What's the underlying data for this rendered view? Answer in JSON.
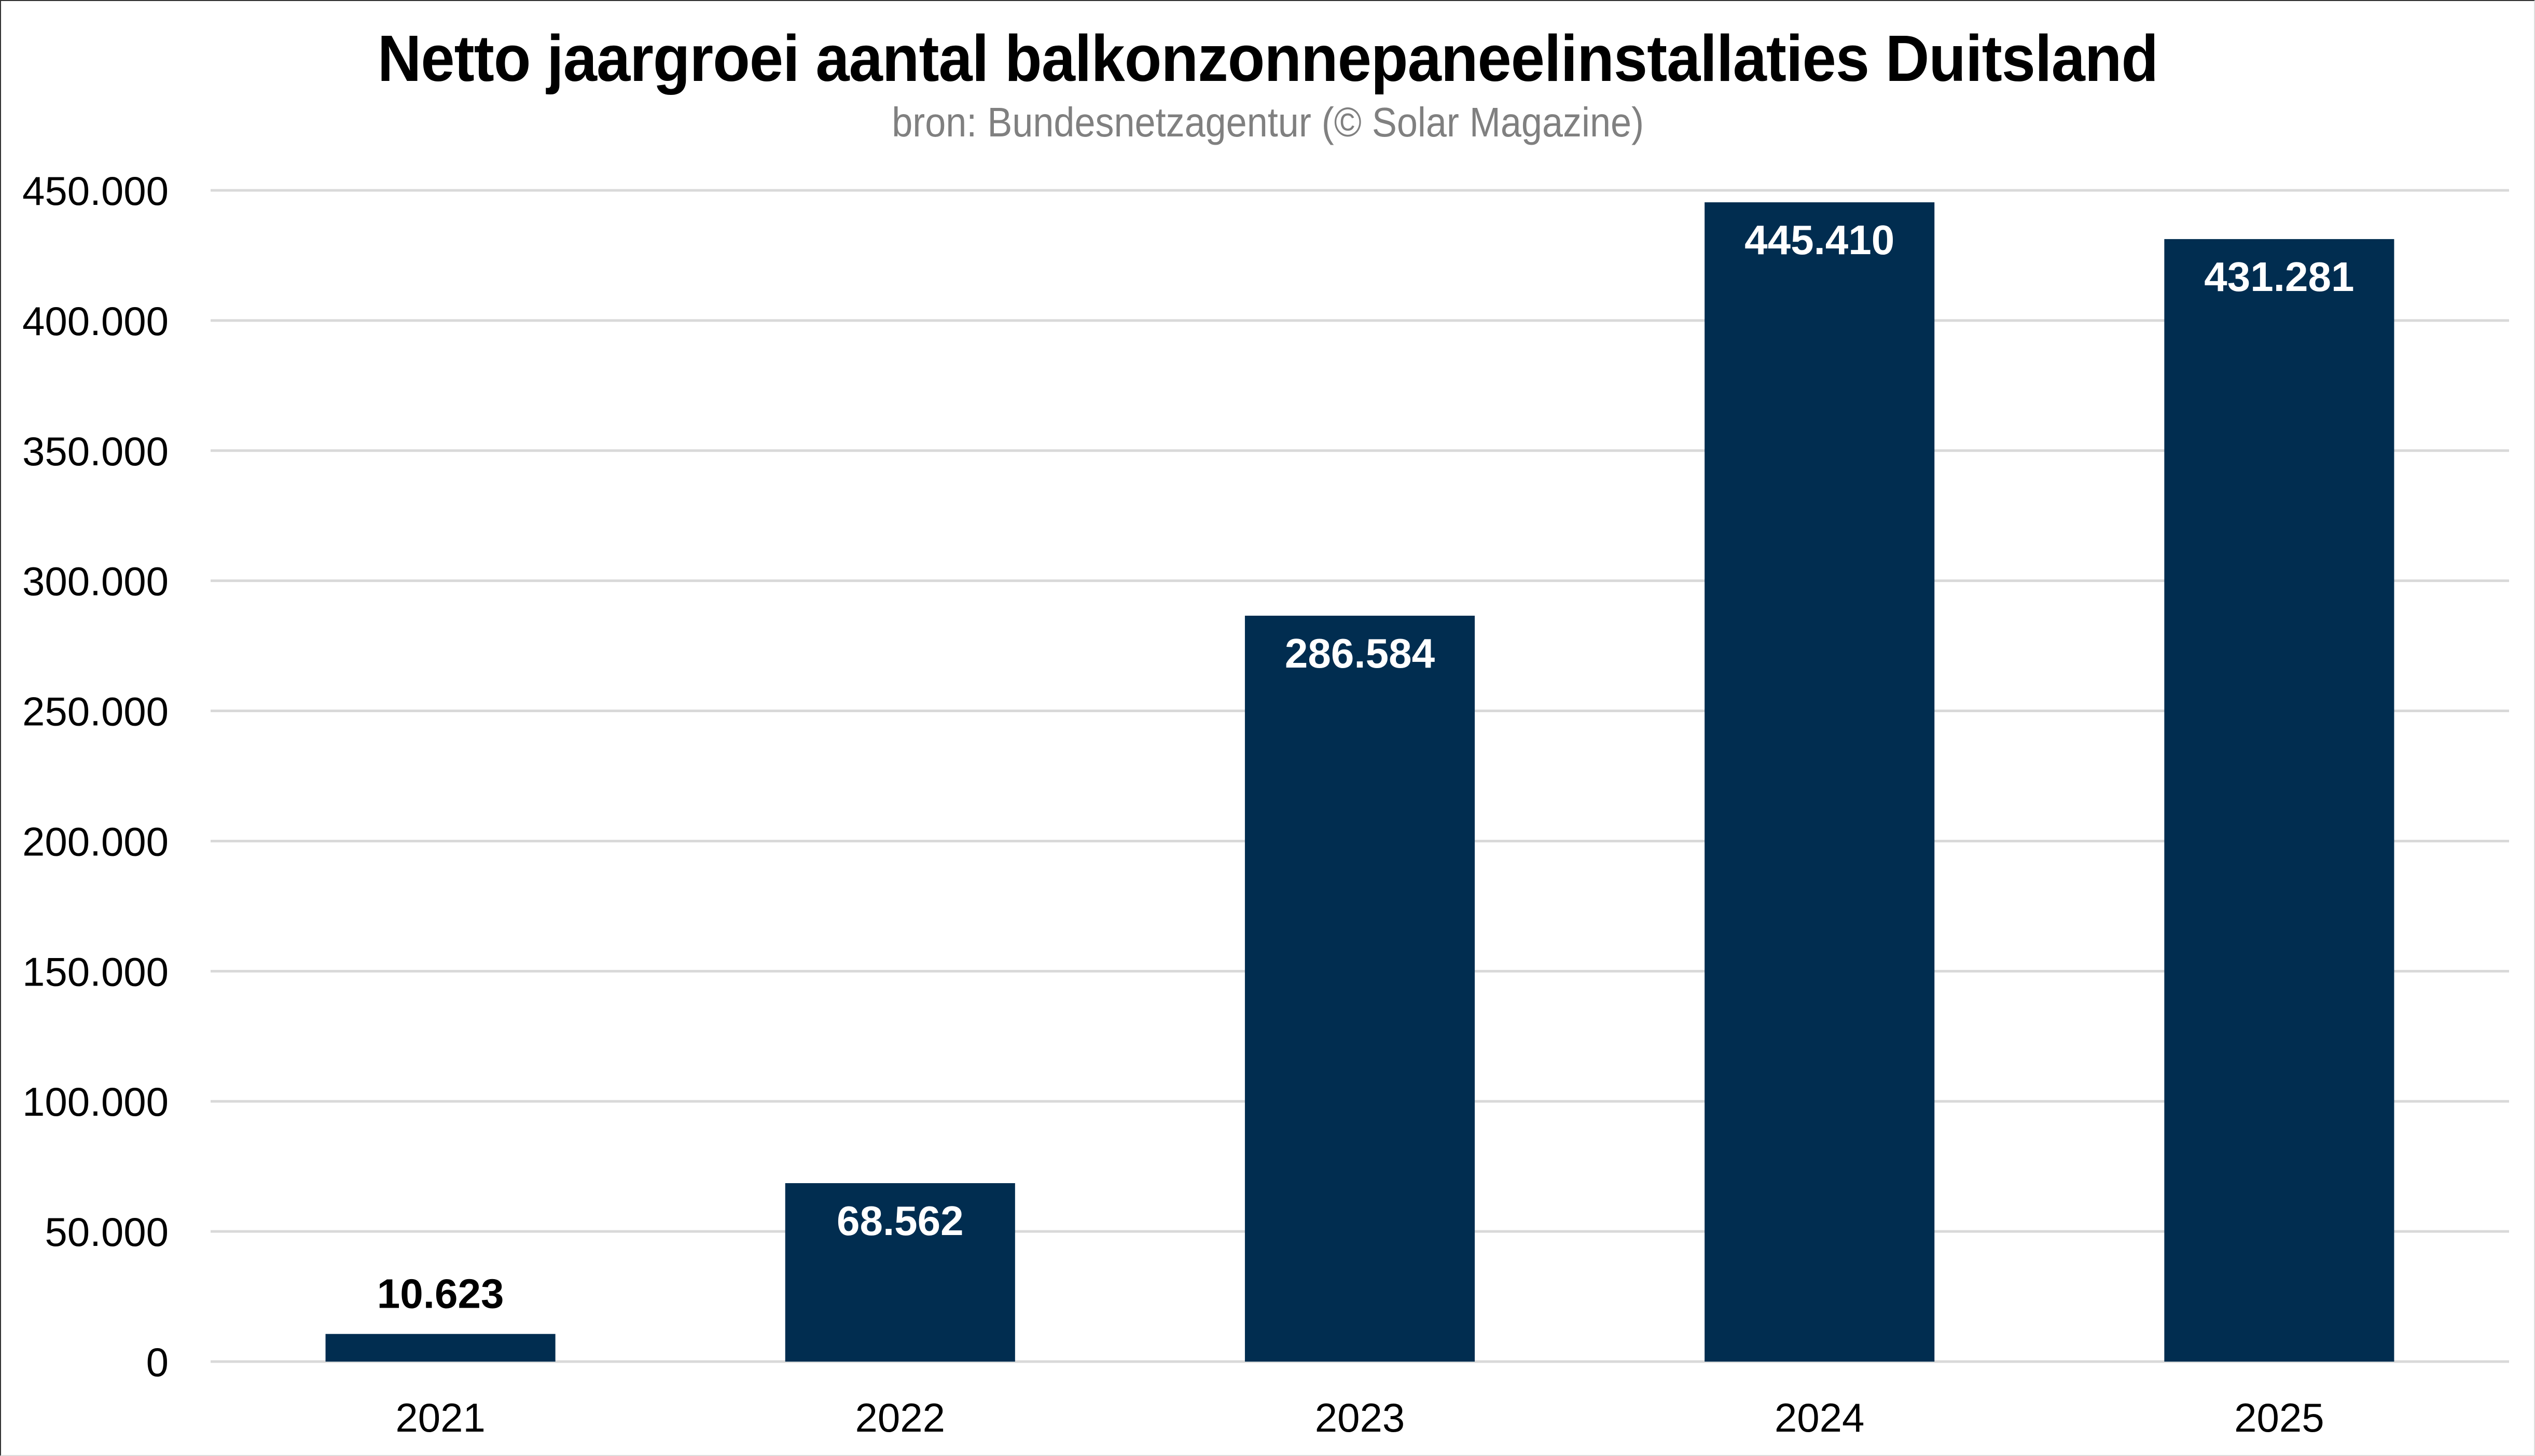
{
  "chart_data": {
    "type": "bar",
    "title": "Netto jaargroei aantal balkonzonnepaneelinstallaties Duitsland",
    "subtitle": "bron: Bundesnetzagentur (© Solar Magazine)",
    "xlabel": "",
    "ylabel": "",
    "categories": [
      "2021",
      "2022",
      "2023",
      "2024",
      "2025"
    ],
    "values": [
      10623,
      68562,
      286584,
      445410,
      431281
    ],
    "data_labels": [
      "10.623",
      "68.562",
      "286.584",
      "445.410",
      "431.281"
    ],
    "ylim": [
      0,
      450000
    ],
    "yticks": [
      0,
      50000,
      100000,
      150000,
      200000,
      250000,
      300000,
      350000,
      400000,
      450000
    ],
    "ytick_labels": [
      "0",
      "50.000",
      "100.000",
      "150.000",
      "200.000",
      "250.000",
      "300.000",
      "350.000",
      "400.000",
      "450.000"
    ],
    "grid": true,
    "legend": "none",
    "colors": {
      "bar": "#012d50",
      "grid": "#d9d9d9",
      "label_inside": "#ffffff",
      "label_outside": "#000000",
      "subtitle": "#808080"
    }
  }
}
